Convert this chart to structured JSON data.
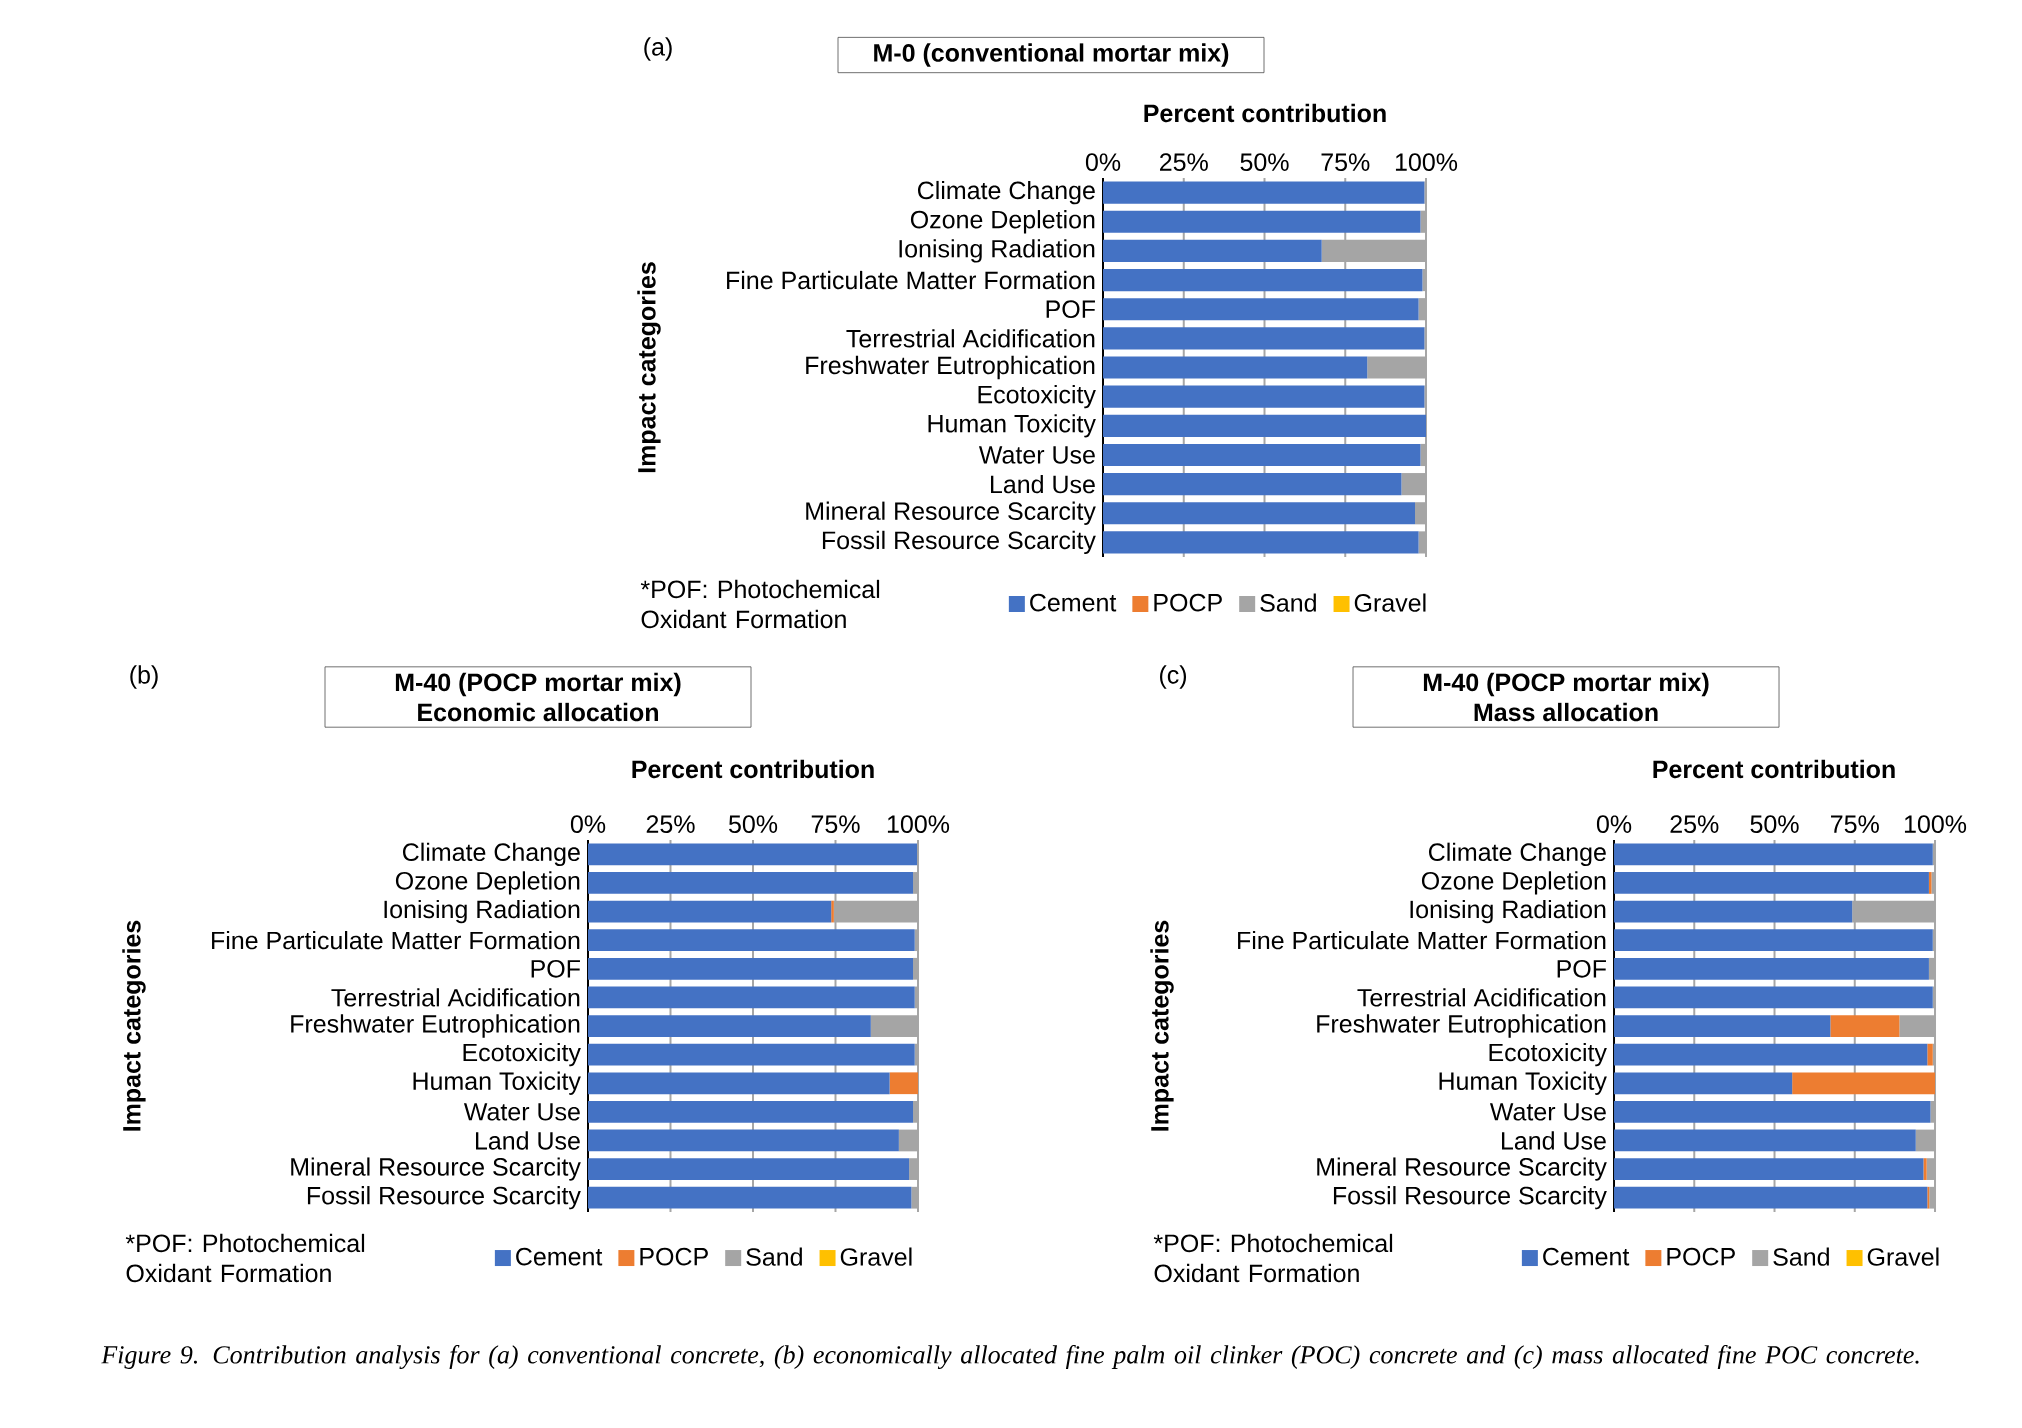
{
  "chart_data": [
    {
      "type": "bar",
      "orientation": "horizontal",
      "stacked": true,
      "title": "M-0 (conventional mortar mix)",
      "xlabel": "Percent contribution",
      "ylabel": "Impact categories",
      "categories": [
        "Climate Change",
        "Ozone Depletion",
        "Ionising Radiation",
        "Fine Particulate Matter Formation",
        "POF",
        "Terrestrial Acidification",
        "Freshwater Eutrophication",
        "Ecotoxicity",
        "Human Toxicity",
        "Water Use",
        "Land Use",
        "Mineral Resource Scarcity",
        "Fossil Resource Scarcity"
      ],
      "series": [
        {
          "name": "Cement",
          "color": "#4472c4",
          "values": [
            99.5,
            98.3,
            67.7,
            98.9,
            97.7,
            99.5,
            81.8,
            99.5,
            100,
            98.3,
            92.4,
            96.6,
            97.7
          ]
        },
        {
          "name": "POCP",
          "color": "#ed7d31",
          "values": [
            0,
            0,
            0,
            0,
            0,
            0,
            0,
            0,
            0,
            0,
            0,
            0,
            0
          ]
        },
        {
          "name": "Sand",
          "color": "#a5a5a5",
          "values": [
            0.5,
            1.7,
            32.3,
            1.1,
            2.3,
            0.5,
            18.2,
            0.5,
            0,
            1.7,
            7.6,
            3.4,
            2.3
          ]
        },
        {
          "name": "Gravel",
          "color": "#ffc000",
          "values": [
            0,
            0,
            0,
            0,
            0,
            0,
            0,
            0,
            0,
            0,
            0,
            0,
            0
          ]
        }
      ],
      "xlim": [
        0,
        100
      ],
      "xticks": [
        {
          "value": 0,
          "label": "0%"
        },
        {
          "value": 25,
          "label": "25%"
        },
        {
          "value": 50,
          "label": "50%"
        },
        {
          "value": 75,
          "label": "75%"
        },
        {
          "value": 100,
          "label": "100%"
        }
      ],
      "grid": "x",
      "legend": "bottom",
      "annotations": [
        "(a)",
        "*POF: Photochemical Oxidant Formation"
      ]
    },
    {
      "type": "bar",
      "orientation": "horizontal",
      "stacked": true,
      "title": "M-40 (POCP mortar mix)",
      "subtitle": "Economic allocation",
      "xlabel": "Percent contribution",
      "ylabel": "Impact categories",
      "categories": [
        "Climate Change",
        "Ozone Depletion",
        "Ionising Radiation",
        "Fine Particulate Matter Formation",
        "POF",
        "Terrestrial Acidification",
        "Freshwater Eutrophication",
        "Ecotoxicity",
        "Human Toxicity",
        "Water Use",
        "Land Use",
        "Mineral Resource Scarcity",
        "Fossil Resource Scarcity"
      ],
      "series": [
        {
          "name": "Cement",
          "color": "#4472c4",
          "values": [
            99.7,
            98.5,
            73.7,
            99,
            98.5,
            99,
            85.7,
            99,
            91.4,
            98.5,
            94.2,
            97.3,
            98
          ]
        },
        {
          "name": "POCP",
          "color": "#ed7d31",
          "values": [
            0,
            0,
            0.8,
            0,
            0,
            0,
            0,
            0,
            8.6,
            0,
            0,
            0,
            0
          ]
        },
        {
          "name": "Sand",
          "color": "#a5a5a5",
          "values": [
            0.3,
            1.5,
            25.5,
            1,
            1.5,
            1,
            14.3,
            1,
            0,
            1.5,
            5.8,
            2.7,
            2
          ]
        },
        {
          "name": "Gravel",
          "color": "#ffc000",
          "values": [
            0,
            0,
            0,
            0,
            0,
            0,
            0,
            0,
            0,
            0,
            0,
            0,
            0
          ]
        }
      ],
      "xlim": [
        0,
        100
      ],
      "xticks": [
        {
          "value": 0,
          "label": "0%"
        },
        {
          "value": 25,
          "label": "25%"
        },
        {
          "value": 50,
          "label": "50%"
        },
        {
          "value": 75,
          "label": "75%"
        },
        {
          "value": 100,
          "label": "100%"
        }
      ],
      "grid": "x",
      "legend": "bottom",
      "annotations": [
        "(b)",
        "*POF: Photochemical Oxidant Formation"
      ]
    },
    {
      "type": "bar",
      "orientation": "horizontal",
      "stacked": true,
      "title": "M-40 (POCP mortar mix)",
      "subtitle": "Mass allocation",
      "xlabel": "Percent contribution",
      "ylabel": "Impact categories",
      "categories": [
        "Climate Change",
        "Ozone Depletion",
        "Ionising Radiation",
        "Fine Particulate Matter Formation",
        "POF",
        "Terrestrial Acidification",
        "Freshwater Eutrophication",
        "Ecotoxicity",
        "Human Toxicity",
        "Water Use",
        "Land Use",
        "Mineral Resource Scarcity",
        "Fossil Resource Scarcity"
      ],
      "series": [
        {
          "name": "Cement",
          "color": "#4472c4",
          "values": [
            99.3,
            98.1,
            74.2,
            99.3,
            98.1,
            99.3,
            67.4,
            97.6,
            55.5,
            98.6,
            94,
            96.4,
            97.6
          ]
        },
        {
          "name": "POCP",
          "color": "#ed7d31",
          "values": [
            0,
            0.8,
            0,
            0,
            0,
            0,
            21.5,
            1.7,
            44.5,
            0,
            0,
            1,
            0.6
          ]
        },
        {
          "name": "Sand",
          "color": "#a5a5a5",
          "values": [
            0.7,
            1.1,
            25.8,
            0.7,
            1.9,
            0.7,
            11.1,
            0.7,
            0,
            1.4,
            6,
            2.6,
            1.8
          ]
        },
        {
          "name": "Gravel",
          "color": "#ffc000",
          "values": [
            0,
            0,
            0,
            0,
            0,
            0,
            0,
            0,
            0,
            0,
            0,
            0,
            0
          ]
        }
      ],
      "xlim": [
        0,
        100
      ],
      "xticks": [
        {
          "value": 0,
          "label": "0%"
        },
        {
          "value": 25,
          "label": "25%"
        },
        {
          "value": 50,
          "label": "50%"
        },
        {
          "value": 75,
          "label": "75%"
        },
        {
          "value": 100,
          "label": "100%"
        }
      ],
      "grid": "x",
      "legend": "bottom",
      "annotations": [
        "(c)",
        "*POF: Photochemical Oxidant Formation",
        "*Figure 9. Contribution analysis for (a) conventional concrete, (b) economically allocated fine palm oil clinker (POC) concrete and (c) mass allocated fine POC concrete.*"
      ]
    }
  ]
}
